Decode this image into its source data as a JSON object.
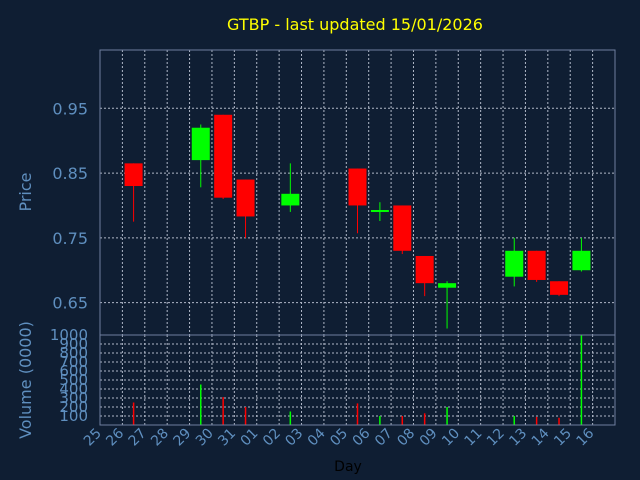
{
  "chart_data": [
    {
      "type": "candlestick",
      "title": "GTBP - last updated 15/01/2026",
      "xlabel": "Day",
      "ylabel": "Price",
      "ylim": [
        0.6,
        1.04
      ],
      "yticks": [
        "0.95",
        "0.85",
        "0.75",
        "0.65"
      ],
      "ytick_values": [
        0.95,
        0.85,
        0.75,
        0.65
      ],
      "grid": true,
      "categories": [
        "25",
        "26",
        "27",
        "28",
        "29",
        "30",
        "31",
        "01",
        "02",
        "03",
        "04",
        "05",
        "06",
        "07",
        "08",
        "09",
        "10",
        "11",
        "12",
        "13",
        "14",
        "15",
        "16"
      ],
      "candles": [
        {
          "x": "26",
          "open": 0.865,
          "close": 0.83,
          "high": 0.865,
          "low": 0.775
        },
        {
          "x": "29",
          "open": 0.87,
          "close": 0.92,
          "high": 0.925,
          "low": 0.828
        },
        {
          "x": "30",
          "open": 0.94,
          "close": 0.812,
          "high": 0.94,
          "low": 0.81
        },
        {
          "x": "31",
          "open": 0.84,
          "close": 0.783,
          "high": 0.84,
          "low": 0.75
        },
        {
          "x": "02",
          "open": 0.8,
          "close": 0.818,
          "high": 0.865,
          "low": 0.79
        },
        {
          "x": "05",
          "open": 0.857,
          "close": 0.8,
          "high": 0.857,
          "low": 0.757
        },
        {
          "x": "06",
          "open": 0.79,
          "close": 0.793,
          "high": 0.805,
          "low": 0.776
        },
        {
          "x": "07",
          "open": 0.8,
          "close": 0.73,
          "high": 0.8,
          "low": 0.725
        },
        {
          "x": "08",
          "open": 0.722,
          "close": 0.68,
          "high": 0.722,
          "low": 0.66
        },
        {
          "x": "09",
          "open": 0.673,
          "close": 0.68,
          "high": 0.683,
          "low": 0.61
        },
        {
          "x": "12",
          "open": 0.69,
          "close": 0.73,
          "high": 0.75,
          "low": 0.675
        },
        {
          "x": "13",
          "open": 0.73,
          "close": 0.685,
          "high": 0.73,
          "low": 0.682
        },
        {
          "x": "14",
          "open": 0.683,
          "close": 0.662,
          "high": 0.683,
          "low": 0.66
        },
        {
          "x": "15",
          "open": 0.7,
          "close": 0.73,
          "high": 0.75,
          "low": 0.698
        }
      ],
      "up_color": "#00ff00",
      "down_color": "#ff0000"
    },
    {
      "type": "bar",
      "xlabel": "Day",
      "ylabel": "Volume (0000)",
      "ylim": [
        0,
        1000
      ],
      "yticks": [
        "1000",
        "900",
        "800",
        "700",
        "600",
        "500",
        "400",
        "300",
        "200",
        "100"
      ],
      "ytick_values": [
        1000,
        900,
        800,
        700,
        600,
        500,
        400,
        300,
        200,
        100
      ],
      "categories": [
        "25",
        "26",
        "27",
        "28",
        "29",
        "30",
        "31",
        "01",
        "02",
        "03",
        "04",
        "05",
        "06",
        "07",
        "08",
        "09",
        "10",
        "11",
        "12",
        "13",
        "14",
        "15",
        "16"
      ],
      "bars": [
        {
          "x": "26",
          "value": 250,
          "direction": "down"
        },
        {
          "x": "29",
          "value": 450,
          "direction": "up"
        },
        {
          "x": "30",
          "value": 310,
          "direction": "down"
        },
        {
          "x": "31",
          "value": 200,
          "direction": "down"
        },
        {
          "x": "02",
          "value": 150,
          "direction": "up"
        },
        {
          "x": "05",
          "value": 240,
          "direction": "down"
        },
        {
          "x": "06",
          "value": 100,
          "direction": "up"
        },
        {
          "x": "07",
          "value": 100,
          "direction": "down"
        },
        {
          "x": "08",
          "value": 130,
          "direction": "down"
        },
        {
          "x": "09",
          "value": 200,
          "direction": "up"
        },
        {
          "x": "12",
          "value": 100,
          "direction": "up"
        },
        {
          "x": "13",
          "value": 90,
          "direction": "down"
        },
        {
          "x": "14",
          "value": 80,
          "direction": "down"
        },
        {
          "x": "15",
          "value": 1000,
          "direction": "up"
        }
      ]
    }
  ],
  "colors": {
    "background": "#0f1e33",
    "title": "#ffff00",
    "axis_text": "#5f8fbf",
    "grid": "#b0b8c8",
    "frame": "#6f7f9f"
  }
}
